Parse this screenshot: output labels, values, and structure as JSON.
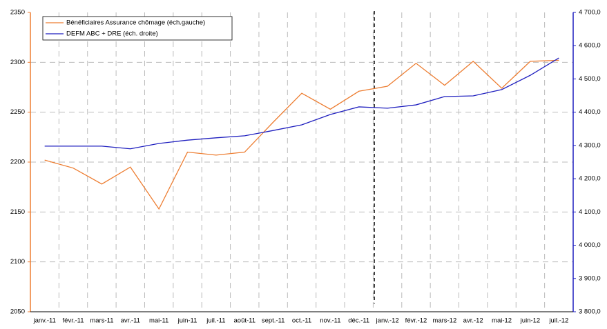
{
  "chart_data": {
    "type": "line",
    "categories": [
      "janv.-11",
      "févr.-11",
      "mars-11",
      "avr.-11",
      "mai-11",
      "juin-11",
      "juil.-11",
      "août-11",
      "sept.-11",
      "oct.-11",
      "nov.-11",
      "déc.-11",
      "janv.-12",
      "févr.-12",
      "mars-12",
      "avr.-12",
      "mai-12",
      "juin-12",
      "juil.-12"
    ],
    "series": [
      {
        "name": "Bénéficiaires Assurance chômage (éch.gauche)",
        "color": "#ed7d31",
        "axis": "y",
        "values": [
          2202,
          2194,
          2178,
          2195,
          2153,
          2210,
          2207,
          2210,
          2240,
          2269,
          2253,
          2271,
          2276,
          2299,
          2277,
          2301,
          2274,
          2301,
          2302
        ]
      },
      {
        "name": "DEFM ABC + DRE (éch. droite)",
        "color": "#1f1fbf",
        "axis": "y2",
        "values": [
          4298,
          4298,
          4298,
          4290,
          4306,
          4316,
          4323,
          4329,
          4345,
          4362,
          4393,
          4416,
          4412,
          4422,
          4447,
          4449,
          4468,
          4511,
          4563
        ]
      }
    ],
    "ylim": [
      2050,
      2350
    ],
    "yticks": [
      2050,
      2100,
      2150,
      2200,
      2250,
      2300,
      2350
    ],
    "y2lim": [
      3800,
      4700
    ],
    "y2ticks": [
      {
        "value": 3800,
        "label": "3 800,0"
      },
      {
        "value": 3900,
        "label": "3 900,0"
      },
      {
        "value": 4000,
        "label": "4 000,0"
      },
      {
        "value": 4100,
        "label": "4 100,0"
      },
      {
        "value": 4200,
        "label": "4 200,0"
      },
      {
        "value": 4300,
        "label": "4 300,0"
      },
      {
        "value": 4400,
        "label": "4 400,0"
      },
      {
        "value": 4500,
        "label": "4 500,0"
      },
      {
        "value": 4600,
        "label": "4 600,0"
      },
      {
        "value": 4700,
        "label": "4 700,0"
      }
    ],
    "grid": true,
    "legend": "top-left"
  }
}
